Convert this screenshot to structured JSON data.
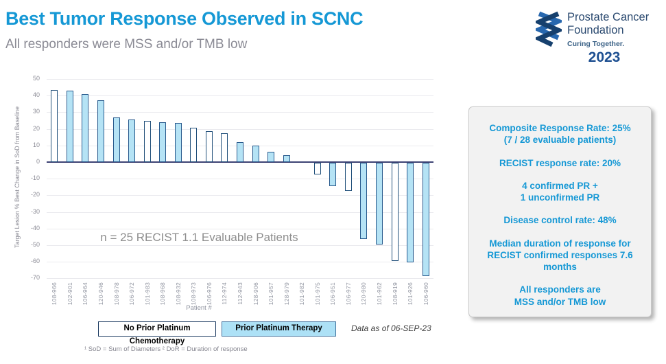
{
  "header": {
    "title": "Best Tumor Response Observed in SCNC",
    "subtitle": "All responders were MSS and/or TMB low"
  },
  "logo": {
    "line1": "Prostate Cancer",
    "line2": "Foundation",
    "tagline": "Curing Together.",
    "year": "2023"
  },
  "chart_data": {
    "type": "bar",
    "title": "",
    "xlabel": "Patient #",
    "ylabel": "Target Lesion % Best Change in SoD from Baseline",
    "ylim": [
      -70,
      50
    ],
    "ytick_step": 10,
    "grid": true,
    "annotation": "n = 25 RECIST 1.1 Evaluable Patients",
    "groups": {
      "no_prior": {
        "label": "No Prior Platinum Chemotherapy",
        "fill": "#FFFFFF",
        "border": "#1F4E79"
      },
      "prior": {
        "label": "Prior Platinum Therapy",
        "fill": "#B5E3F5",
        "border": "#27598C"
      }
    },
    "bars": [
      {
        "patient": "108-966",
        "value": 43.5,
        "group": "no_prior"
      },
      {
        "patient": "102-901",
        "value": 43,
        "group": "prior"
      },
      {
        "patient": "106-964",
        "value": 41,
        "group": "prior"
      },
      {
        "patient": "120-946",
        "value": 37,
        "group": "prior"
      },
      {
        "patient": "108-978",
        "value": 27,
        "group": "prior"
      },
      {
        "patient": "106-972",
        "value": 25.5,
        "group": "prior"
      },
      {
        "patient": "101-983",
        "value": 25,
        "group": "no_prior"
      },
      {
        "patient": "108-968",
        "value": 24,
        "group": "prior"
      },
      {
        "patient": "108-932",
        "value": 23.5,
        "group": "prior"
      },
      {
        "patient": "108-973",
        "value": 20.5,
        "group": "no_prior"
      },
      {
        "patient": "106-976",
        "value": 18.5,
        "group": "no_prior"
      },
      {
        "patient": "112-974",
        "value": 17.5,
        "group": "no_prior"
      },
      {
        "patient": "112-943",
        "value": 12,
        "group": "prior"
      },
      {
        "patient": "128-906",
        "value": 10,
        "group": "prior"
      },
      {
        "patient": "101-957",
        "value": 6,
        "group": "prior"
      },
      {
        "patient": "128-979",
        "value": 4,
        "group": "prior"
      },
      {
        "patient": "101-982",
        "value": 0,
        "group": "none"
      },
      {
        "patient": "101-975",
        "value": -7,
        "group": "no_prior"
      },
      {
        "patient": "106-951",
        "value": -14,
        "group": "prior"
      },
      {
        "patient": "106-977",
        "value": -17,
        "group": "no_prior"
      },
      {
        "patient": "120-980",
        "value": -46,
        "group": "prior"
      },
      {
        "patient": "101-962",
        "value": -49,
        "group": "prior"
      },
      {
        "patient": "108-919",
        "value": -59,
        "group": "no_prior"
      },
      {
        "patient": "101-926",
        "value": -60,
        "group": "prior"
      },
      {
        "patient": "106-960",
        "value": -68,
        "group": "prior"
      }
    ]
  },
  "legend": {
    "items": [
      {
        "label": "No Prior Platinum Chemotherapy",
        "fill": "#FFFFFF",
        "border": "#17365D"
      },
      {
        "label": "Prior Platinum Therapy",
        "fill": "#ADE1F6",
        "border": "#41719C"
      }
    ],
    "data_as_of": "Data as of 06-SEP-23"
  },
  "footnote": "¹ SoD = Sum of Diameters ² DoR = Duration of response",
  "panel": {
    "paragraphs": [
      [
        "Composite Response Rate: 25%",
        "(7 / 28 evaluable patients)"
      ],
      [
        "RECIST response rate: 20%"
      ],
      [
        "4 confirmed PR +",
        "1 unconfirmed PR"
      ],
      [
        "Disease control rate: 48%"
      ],
      [
        "Median duration of response for",
        "RECIST confirmed responses  7.6",
        "months"
      ],
      [
        "All responders are",
        "MSS and/or TMB low"
      ]
    ]
  },
  "colors": {
    "accent_blue": "#1598D5",
    "logo_navy": "#1D4F91",
    "logo_blue": "#2767AE",
    "axis": "#3C4273",
    "grid": "#EAEAEE",
    "muted_text": "#8B8B95"
  }
}
